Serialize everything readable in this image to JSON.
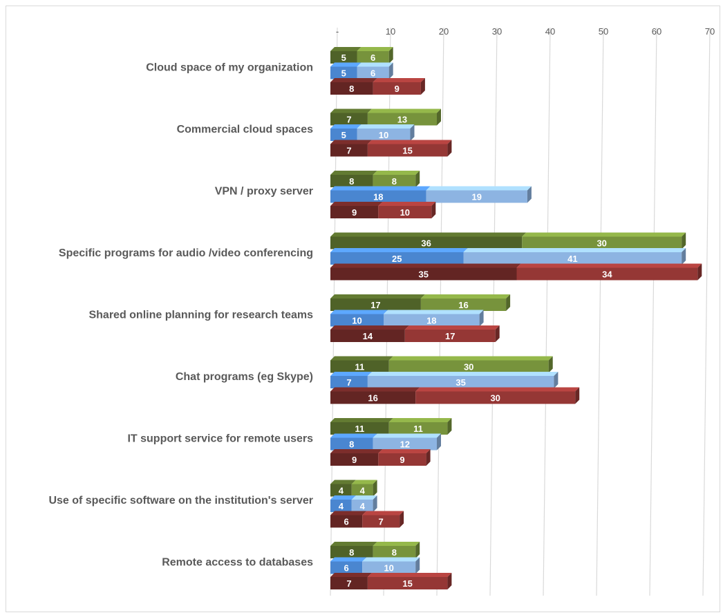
{
  "chart_data": {
    "type": "bar",
    "orientation": "horizontal",
    "stacked": true,
    "style": "3d",
    "title": "",
    "xlabel": "",
    "ylabel": "",
    "xlim": [
      0,
      70
    ],
    "x_ticks": [
      0,
      10,
      20,
      30,
      40,
      50,
      60,
      70
    ],
    "x_tick_labels": [
      "-",
      "10",
      "20",
      "30",
      "40",
      "50",
      "60",
      "70"
    ],
    "grid": true,
    "legend": "none",
    "categories": [
      "Cloud space of my organization",
      "Commercial cloud spaces",
      "VPN / proxy server",
      "Specific programs for audio /video conferencing",
      "Shared online planning for research teams",
      "Chat programs (eg Skype)",
      "IT support service for remote users",
      "Use of specific software on the institution's server",
      "Remote access to databases"
    ],
    "groups": [
      {
        "color_dark": "#4f6228",
        "color_light": "#77933c",
        "segments": [
          [
            5,
            6
          ],
          [
            7,
            13
          ],
          [
            8,
            8
          ],
          [
            36,
            30
          ],
          [
            17,
            16
          ],
          [
            11,
            30
          ],
          [
            11,
            11
          ],
          [
            4,
            4
          ],
          [
            8,
            8
          ]
        ]
      },
      {
        "color_dark": "#4a86d0",
        "color_light": "#8db4e2",
        "segments": [
          [
            5,
            6
          ],
          [
            5,
            10
          ],
          [
            18,
            19
          ],
          [
            25,
            41
          ],
          [
            10,
            18
          ],
          [
            7,
            35
          ],
          [
            8,
            12
          ],
          [
            4,
            4
          ],
          [
            6,
            10
          ]
        ]
      },
      {
        "color_dark": "#632523",
        "color_light": "#953735",
        "segments": [
          [
            8,
            9
          ],
          [
            7,
            15
          ],
          [
            9,
            10
          ],
          [
            35,
            34
          ],
          [
            14,
            17
          ],
          [
            16,
            30
          ],
          [
            9,
            9
          ],
          [
            6,
            7
          ],
          [
            7,
            15
          ]
        ]
      }
    ]
  }
}
